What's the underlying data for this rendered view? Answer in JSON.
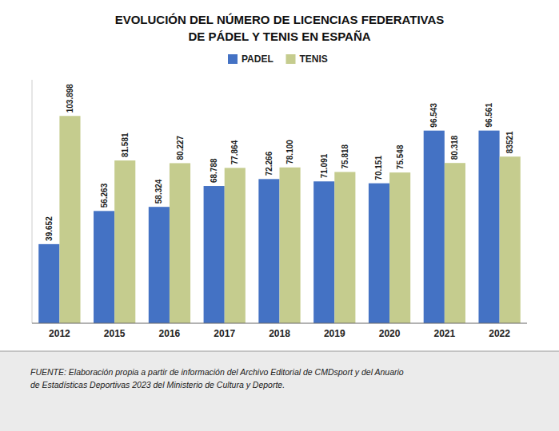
{
  "chart_data": {
    "type": "bar",
    "title": "EVOLUCIÓN DEL NÚMERO DE LICENCIAS FEDERATIVAS",
    "subtitle": "DE PÁDEL Y TENIS EN ESPAÑA",
    "categories": [
      "2012",
      "2015",
      "2016",
      "2017",
      "2018",
      "2019",
      "2020",
      "2021",
      "2022"
    ],
    "series": [
      {
        "name": "PADEL",
        "color": "#4472C4",
        "values": [
          39652,
          56263,
          58324,
          68788,
          72266,
          71091,
          70151,
          96543,
          96561
        ],
        "value_labels": [
          "39.652",
          "56.263",
          "58.324",
          "68.788",
          "72.266",
          "71.091",
          "70.151",
          "96.543",
          "96.561"
        ]
      },
      {
        "name": "TENIS",
        "color": "#C5CC8E",
        "values": [
          103898,
          81581,
          80227,
          77864,
          78100,
          75818,
          75548,
          80318,
          83521
        ],
        "value_labels": [
          "103.898",
          "81.581",
          "80.227",
          "77.864",
          "78.100",
          "75.818",
          "75.548",
          "80.318",
          "83521"
        ]
      }
    ],
    "ylim": [
      0,
      122000
    ],
    "grid": false,
    "legend": "top",
    "data_labels": true,
    "tick_labels": "x",
    "annotations": [
      "FUENTE: Elaboración propia a partir de información del Archivo Editorial de CMDsport y del Anuario\nde Estadísticas Deportivas 2023 del Ministerio de Cultura y Deporte."
    ]
  }
}
